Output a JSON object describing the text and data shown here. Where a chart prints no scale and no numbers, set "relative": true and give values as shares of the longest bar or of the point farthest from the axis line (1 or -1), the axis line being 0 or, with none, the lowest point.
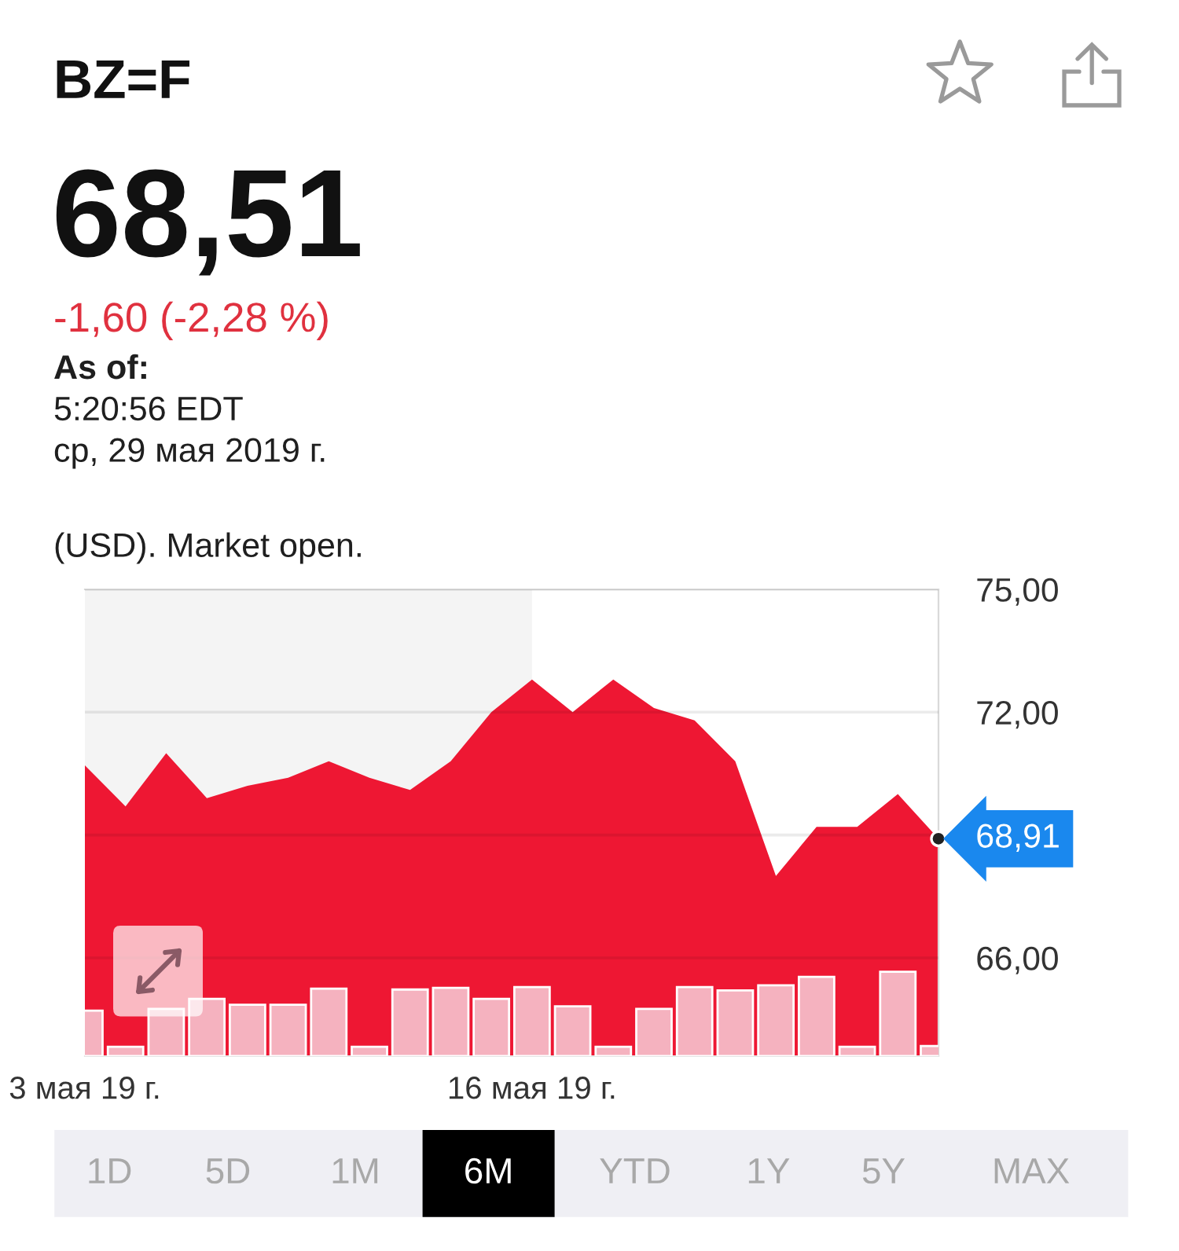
{
  "chart_data": [
    {
      "type": "area",
      "title": "BZ=F",
      "subtitle": "68,51",
      "categories": [
        "3 мая 19 г.",
        null,
        null,
        null,
        null,
        null,
        null,
        null,
        null,
        null,
        null,
        "16 мая 19 г.",
        null,
        null,
        null,
        null,
        null,
        null,
        null,
        null,
        null,
        null
      ],
      "values": [
        70.7,
        69.7,
        71.0,
        69.9,
        70.2,
        70.4,
        70.8,
        70.4,
        70.1,
        70.8,
        72.0,
        72.8,
        72.0,
        72.8,
        72.1,
        71.8,
        70.8,
        68.0,
        69.2,
        69.2,
        70.0,
        68.91
      ],
      "color": "#ee1733",
      "ylim": [
        63.6,
        75
      ],
      "yticks": [
        {
          "value": 75,
          "label": "75,00"
        },
        {
          "value": 72,
          "label": "72,00"
        },
        {
          "value": 69,
          "label": null
        },
        {
          "value": 66,
          "label": "66,00"
        }
      ],
      "grid": "y",
      "bands": [
        {
          "axis": "x",
          "from": "3 мая 19 г.",
          "to": "16 мая 19 г.",
          "color": "#f4f4f4"
        }
      ],
      "annotations": [
        "-1,60 (-2,28 %)",
        "As of:",
        "5:20:56 EDT",
        "ср, 29 мая 2019 г.",
        "(USD). Market open.",
        "1D",
        "5D",
        "1M",
        "6M",
        "YTD",
        "1Y",
        "5Y",
        "MAX",
        "68,91"
      ]
    },
    {
      "type": "bar",
      "relative": true,
      "categories": [
        null,
        null,
        null,
        null,
        null,
        null,
        null,
        null,
        null,
        null,
        null,
        null,
        null,
        null,
        null,
        null,
        null,
        null,
        null,
        null,
        null,
        null
      ],
      "values": [
        0.54,
        0.11,
        0.56,
        0.68,
        0.61,
        0.61,
        0.8,
        0.11,
        0.79,
        0.81,
        0.68,
        0.82,
        0.59,
        0.11,
        0.56,
        0.82,
        0.78,
        0.84,
        0.94,
        0.11,
        1,
        0.12
      ],
      "color": "#f5b2bf"
    }
  ]
}
